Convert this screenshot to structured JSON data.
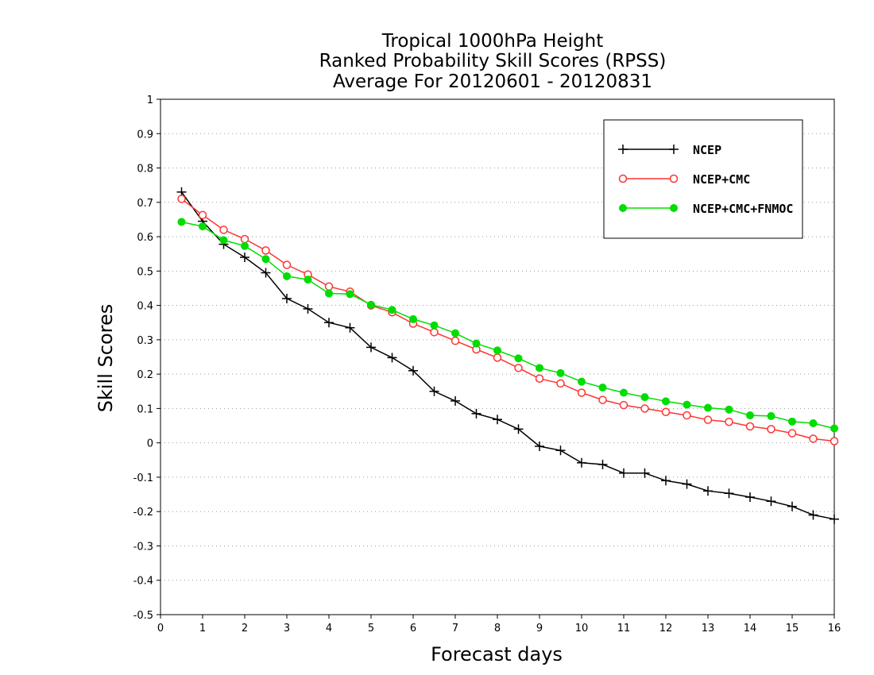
{
  "chart_data": {
    "type": "line",
    "title_lines": [
      "Tropical 1000hPa Height",
      "Ranked Probability Skill Scores (RPSS)",
      "Average For 20120601 - 20120831"
    ],
    "xlabel": "Forecast days",
    "ylabel": "Skill Scores",
    "xlim": [
      0,
      16
    ],
    "ylim": [
      -0.5,
      1
    ],
    "xticks": [
      0,
      1,
      2,
      3,
      4,
      5,
      6,
      7,
      8,
      9,
      10,
      11,
      12,
      13,
      14,
      15,
      16
    ],
    "yticks": [
      -0.5,
      -0.4,
      -0.3,
      -0.2,
      -0.1,
      0,
      0.1,
      0.2,
      0.3,
      0.4,
      0.5,
      0.6,
      0.7,
      0.8,
      0.9,
      1
    ],
    "ytick_labels": [
      "-0.5",
      "-0.4",
      "-0.3",
      "-0.2",
      "-0.1",
      "0",
      "0.1",
      "0.2",
      "0.3",
      "0.4",
      "0.5",
      "0.6",
      "0.7",
      "0.8",
      "0.9",
      "1"
    ],
    "grid": "horizontal-dotted",
    "legend_position": "top-right",
    "x": [
      0.5,
      1,
      1.5,
      2,
      2.5,
      3,
      3.5,
      4,
      4.5,
      5,
      5.5,
      6,
      6.5,
      7,
      7.5,
      8,
      8.5,
      9,
      9.5,
      10,
      10.5,
      11,
      11.5,
      12,
      12.5,
      13,
      13.5,
      14,
      14.5,
      15,
      15.5,
      16
    ],
    "series": [
      {
        "name": "NCEP",
        "color": "#000000",
        "marker": "plus",
        "values": [
          0.73,
          0.645,
          0.578,
          0.54,
          0.495,
          0.42,
          0.39,
          0.35,
          0.335,
          0.278,
          0.248,
          0.21,
          0.15,
          0.122,
          0.085,
          0.068,
          0.04,
          -0.01,
          -0.022,
          -0.058,
          -0.063,
          -0.088,
          -0.088,
          -0.11,
          -0.12,
          -0.14,
          -0.147,
          -0.158,
          -0.17,
          -0.185,
          -0.21,
          -0.222
        ]
      },
      {
        "name": "NCEP+CMC",
        "color": "#ff3333",
        "marker": "open-circle",
        "values": [
          0.71,
          0.663,
          0.62,
          0.593,
          0.56,
          0.518,
          0.49,
          0.455,
          0.44,
          0.4,
          0.38,
          0.347,
          0.322,
          0.297,
          0.272,
          0.248,
          0.218,
          0.187,
          0.173,
          0.146,
          0.125,
          0.11,
          0.1,
          0.09,
          0.08,
          0.067,
          0.061,
          0.048,
          0.04,
          0.028,
          0.012,
          0.005
        ]
      },
      {
        "name": "NCEP+CMC+FNMOC",
        "color": "#00dd00",
        "marker": "filled-circle",
        "values": [
          0.643,
          0.63,
          0.59,
          0.573,
          0.535,
          0.485,
          0.475,
          0.435,
          0.433,
          0.402,
          0.387,
          0.36,
          0.342,
          0.319,
          0.289,
          0.269,
          0.246,
          0.218,
          0.203,
          0.178,
          0.161,
          0.146,
          0.133,
          0.121,
          0.111,
          0.102,
          0.097,
          0.08,
          0.078,
          0.062,
          0.057,
          0.042
        ]
      }
    ]
  }
}
